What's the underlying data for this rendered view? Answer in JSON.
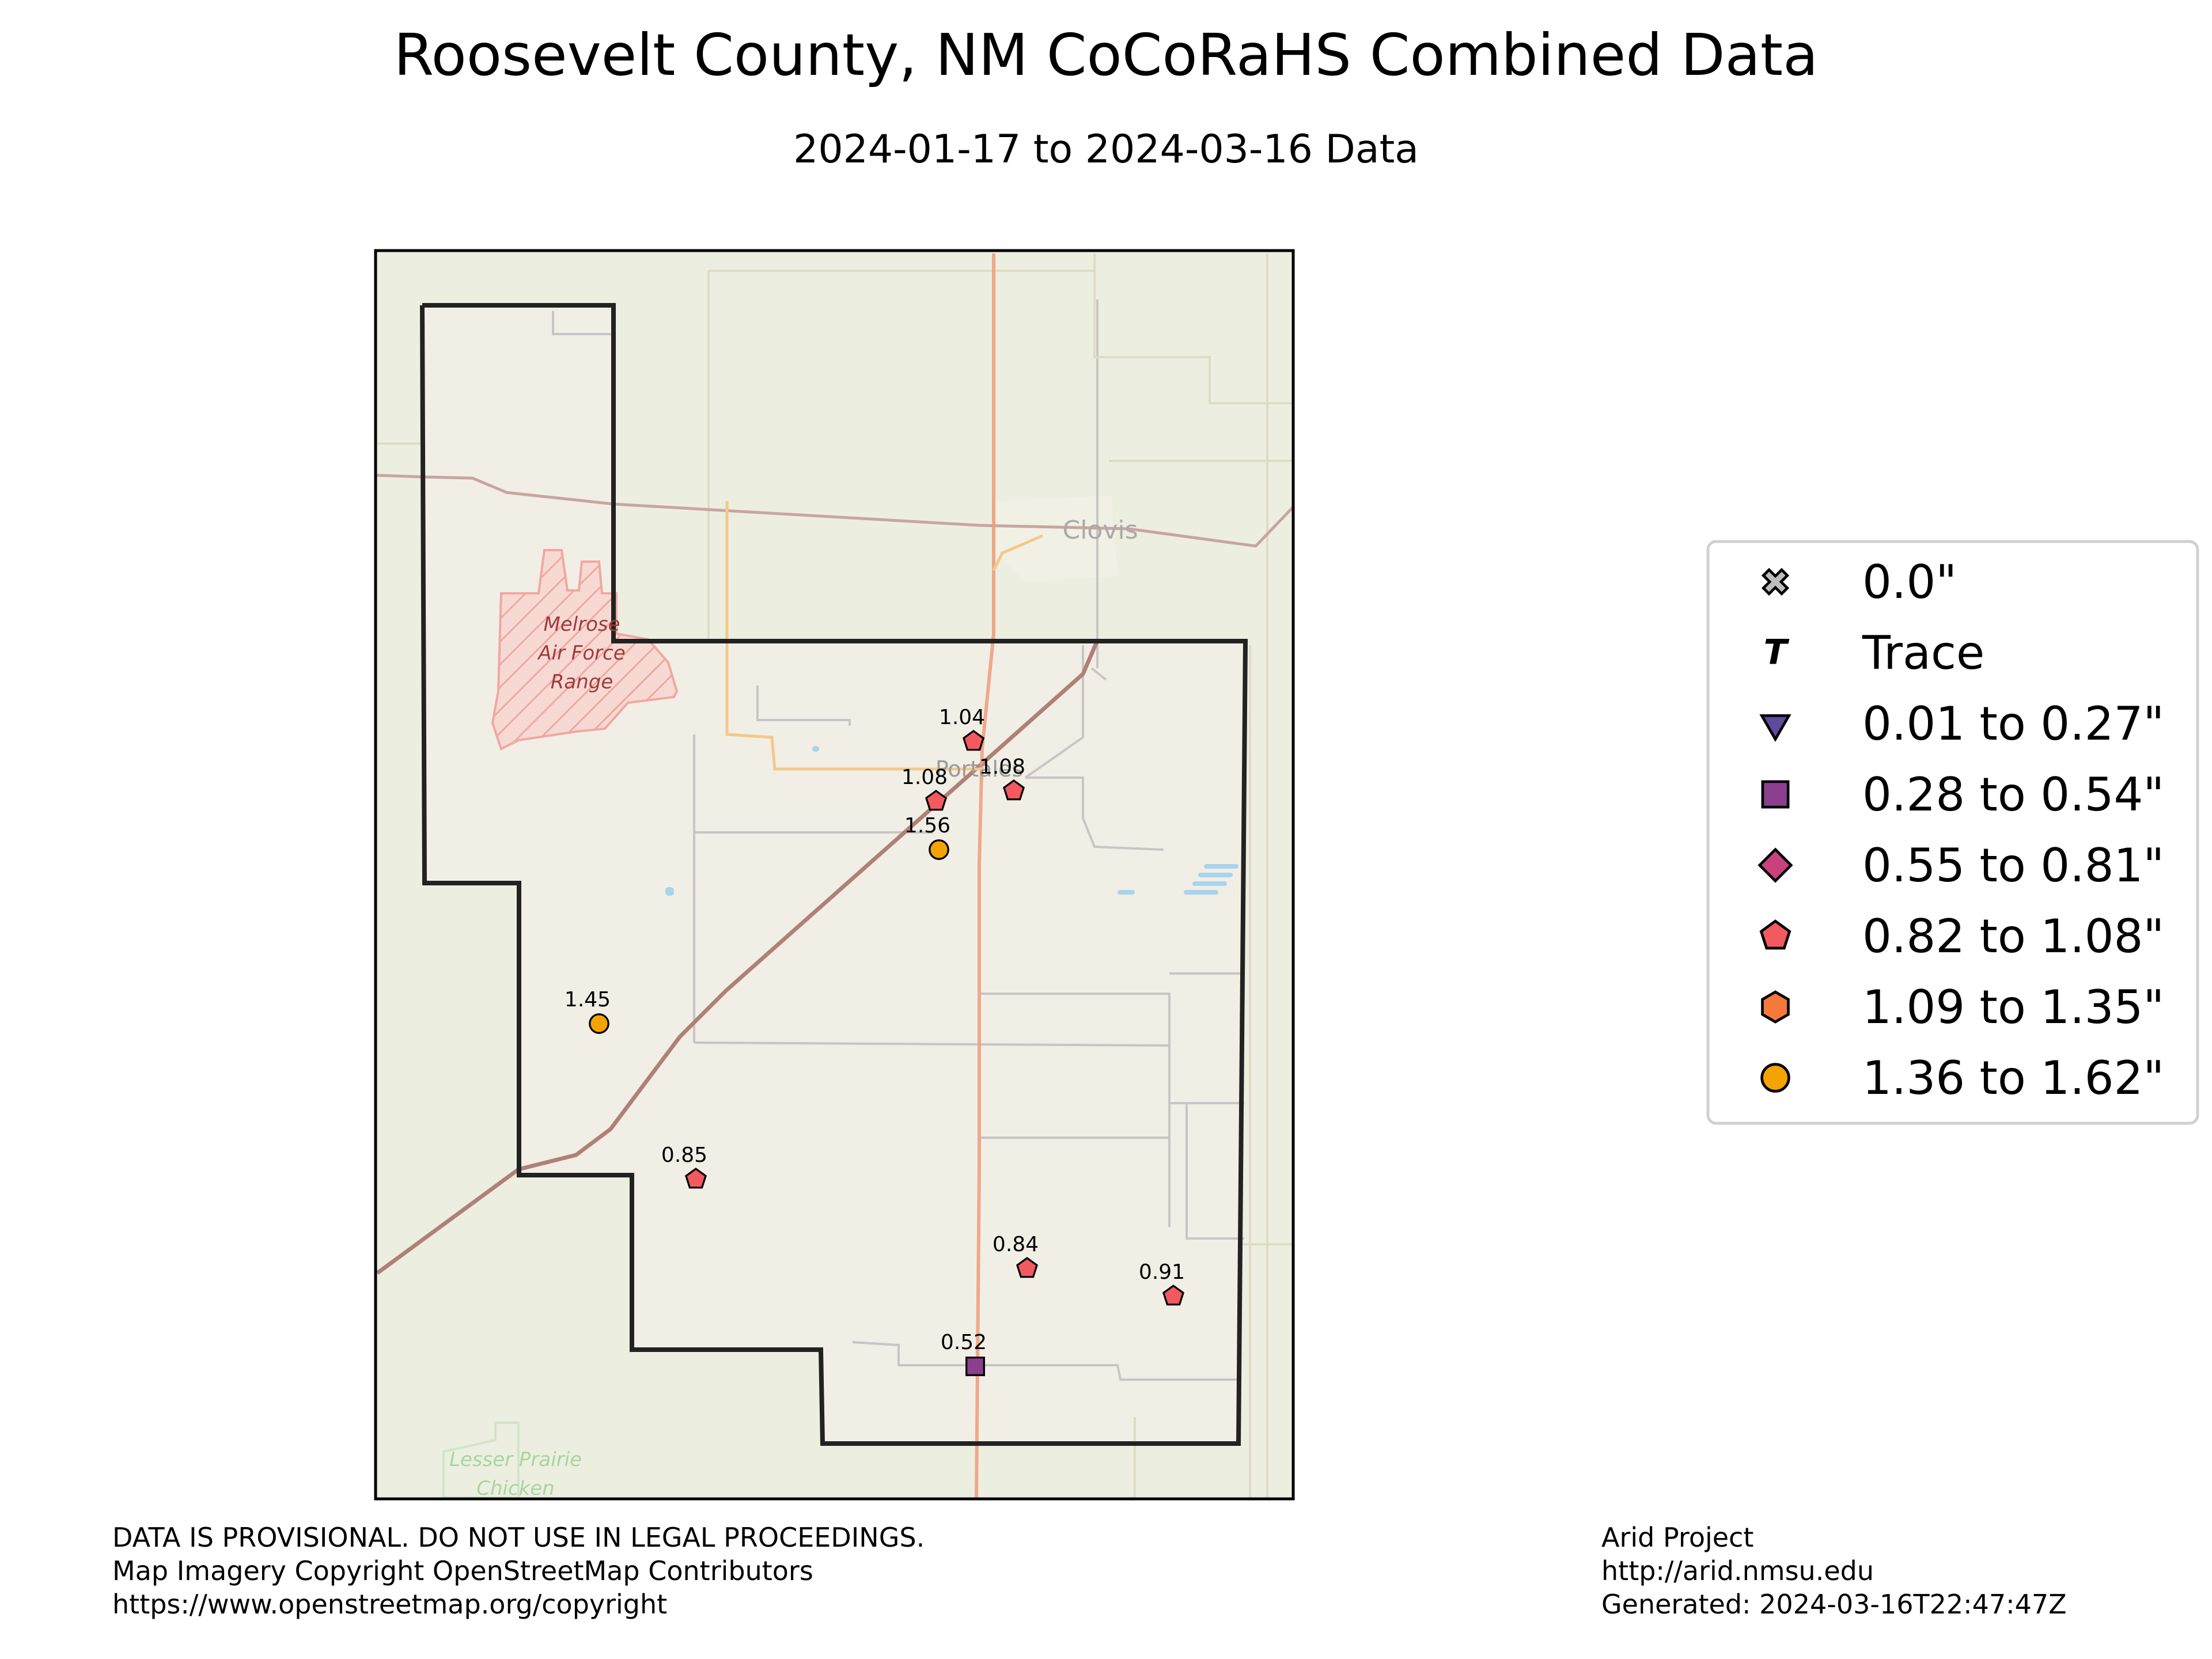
{
  "title": "Roosevelt County, NM CoCoRaHS Combined Data",
  "subtitle": "2024-01-17 to 2024-03-16 Data",
  "basemap_labels": {
    "city_clovis": "Clovis",
    "city_portales": "Portales",
    "melrose_line1": "Melrose",
    "melrose_line2": "Air Force",
    "melrose_line3": "Range",
    "prairie_line1": "Lesser Prairie",
    "prairie_line2": "Chicken"
  },
  "legend": [
    {
      "label": "0.0\"",
      "symbol": "x",
      "color": "#bdbdbd"
    },
    {
      "label": "Trace",
      "symbol": "T",
      "color": "#000000"
    },
    {
      "label": "0.01 to 0.27\"",
      "symbol": "triangle-down",
      "color": "#5e4b9c"
    },
    {
      "label": "0.28 to 0.54\"",
      "symbol": "square",
      "color": "#8b3f8f"
    },
    {
      "label": "0.55 to 0.81\"",
      "symbol": "diamond",
      "color": "#c9427d"
    },
    {
      "label": "0.82 to 1.08\"",
      "symbol": "pentagon",
      "color": "#f25a5f"
    },
    {
      "label": "1.09 to 1.35\"",
      "symbol": "hexagon",
      "color": "#f5793a"
    },
    {
      "label": "1.36 to 1.62\"",
      "symbol": "circle",
      "color": "#f5a300"
    }
  ],
  "stations": [
    {
      "label": "1.04",
      "value": 1.04,
      "symbol": "pentagon"
    },
    {
      "label": "1.08",
      "value": 1.08,
      "symbol": "pentagon"
    },
    {
      "label": "1.08",
      "value": 1.08,
      "symbol": "pentagon"
    },
    {
      "label": "1.56",
      "value": 1.56,
      "symbol": "circle"
    },
    {
      "label": "1.45",
      "value": 1.45,
      "symbol": "circle"
    },
    {
      "label": "0.85",
      "value": 0.85,
      "symbol": "pentagon"
    },
    {
      "label": "0.84",
      "value": 0.84,
      "symbol": "pentagon"
    },
    {
      "label": "0.91",
      "value": 0.91,
      "symbol": "pentagon"
    },
    {
      "label": "0.52",
      "value": 0.52,
      "symbol": "square"
    }
  ],
  "footer": {
    "left_line1": "DATA IS PROVISIONAL. DO NOT USE IN LEGAL PROCEEDINGS.",
    "left_line2": "Map Imagery Copyright OpenStreetMap Contributors",
    "left_line3": "https://www.openstreetmap.org/copyright",
    "right_line1": "Arid Project",
    "right_line2": "http://arid.nmsu.edu",
    "right_line3": "Generated: 2024-03-16T22:47:47Z"
  }
}
